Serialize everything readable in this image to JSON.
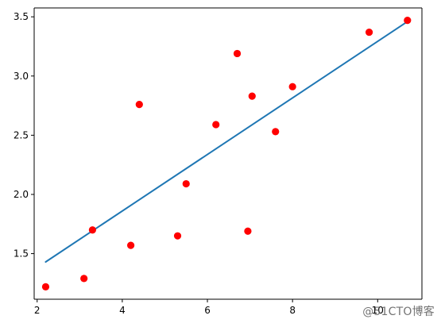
{
  "chart_data": {
    "type": "scatter",
    "title": "",
    "xlabel": "",
    "ylabel": "",
    "xlim": [
      1.93,
      11.04
    ],
    "ylim": [
      1.115,
      3.575
    ],
    "xticks": [
      2,
      4,
      6,
      8,
      10
    ],
    "yticks": [
      1.5,
      2.0,
      2.5,
      3.0,
      3.5
    ],
    "xtick_labels": [
      "2",
      "4",
      "6",
      "8",
      "10"
    ],
    "ytick_labels": [
      "1.5",
      "2.0",
      "2.5",
      "3.0",
      "3.5"
    ],
    "grid": false,
    "series": [
      {
        "kind": "scatter",
        "color": "#ff0000",
        "points": [
          {
            "x": 2.2,
            "y": 1.22
          },
          {
            "x": 3.1,
            "y": 1.29
          },
          {
            "x": 3.3,
            "y": 1.7
          },
          {
            "x": 4.2,
            "y": 1.57
          },
          {
            "x": 4.4,
            "y": 2.76
          },
          {
            "x": 5.3,
            "y": 1.65
          },
          {
            "x": 5.5,
            "y": 2.09
          },
          {
            "x": 6.2,
            "y": 2.59
          },
          {
            "x": 6.7,
            "y": 3.19
          },
          {
            "x": 6.95,
            "y": 1.69
          },
          {
            "x": 7.05,
            "y": 2.83
          },
          {
            "x": 7.6,
            "y": 2.53
          },
          {
            "x": 8.0,
            "y": 2.91
          },
          {
            "x": 9.8,
            "y": 3.37
          },
          {
            "x": 10.7,
            "y": 3.47
          }
        ]
      },
      {
        "kind": "line",
        "color": "#1f77b4",
        "points": [
          {
            "x": 2.2,
            "y": 1.43
          },
          {
            "x": 10.7,
            "y": 3.46
          }
        ]
      }
    ]
  },
  "watermark": {
    "text": "@51CTO博客"
  }
}
